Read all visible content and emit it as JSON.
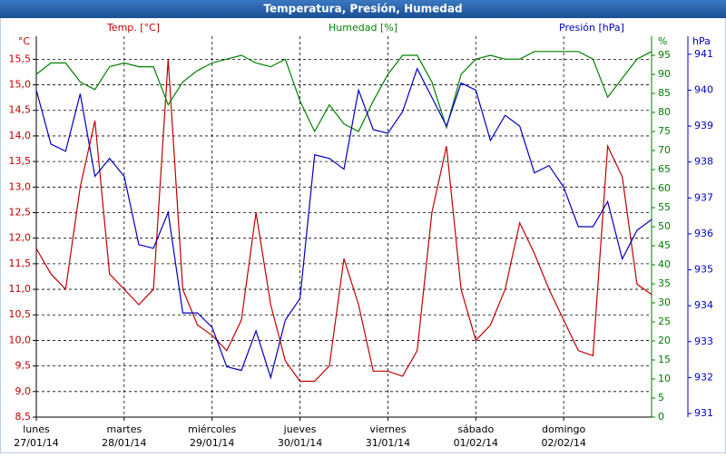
{
  "chart_data": {
    "type": "line",
    "title": "Temperatura, Presión, Humedad",
    "ylabel": "Temp. [°C]",
    "y2label": "Humedad [%]",
    "y3label": "Presión [hPa]",
    "yunit": "°C",
    "y2unit": "%",
    "y3unit": "hPa",
    "x": [
      0,
      4,
      8,
      12,
      16,
      20,
      24,
      28,
      32,
      36,
      40,
      44,
      48,
      52,
      56,
      60,
      64,
      68,
      72,
      76,
      80,
      84,
      88,
      92,
      96,
      100,
      104,
      108,
      112,
      116,
      120,
      124,
      128,
      132,
      136,
      140,
      144,
      148,
      152,
      156,
      160,
      164,
      168
    ],
    "xlim": [
      0,
      168
    ],
    "xticks": [
      {
        "value": 0,
        "label": "lunes",
        "date": "27/01/14"
      },
      {
        "value": 24,
        "label": "martes",
        "date": "28/01/14"
      },
      {
        "value": 48,
        "label": "miércoles",
        "date": "29/01/14"
      },
      {
        "value": 72,
        "label": "jueves",
        "date": "30/01/14"
      },
      {
        "value": 96,
        "label": "viernes",
        "date": "31/01/14"
      },
      {
        "value": 120,
        "label": "sábado",
        "date": "01/02/14"
      },
      {
        "value": 144,
        "label": "domingo",
        "date": "02/02/14"
      }
    ],
    "ylim": [
      8.5,
      15.95
    ],
    "yticks": [
      {
        "value": 8.5,
        "label": "8,5"
      },
      {
        "value": 9,
        "label": "9,0"
      },
      {
        "value": 9.5,
        "label": "9,5"
      },
      {
        "value": 10,
        "label": "10,0"
      },
      {
        "value": 10.5,
        "label": "10,5"
      },
      {
        "value": 11,
        "label": "11,0"
      },
      {
        "value": 11.5,
        "label": "11,5"
      },
      {
        "value": 12,
        "label": "12,0"
      },
      {
        "value": 12.5,
        "label": "12,5"
      },
      {
        "value": 13,
        "label": "13,0"
      },
      {
        "value": 13.5,
        "label": "13,5"
      },
      {
        "value": 14,
        "label": "14,0"
      },
      {
        "value": 14.5,
        "label": "14,5"
      },
      {
        "value": 15,
        "label": "15,0"
      },
      {
        "value": 15.5,
        "label": "15,5"
      }
    ],
    "y2lim": [
      0,
      100
    ],
    "y2ticks": [
      0,
      5,
      10,
      15,
      20,
      25,
      30,
      35,
      40,
      45,
      50,
      55,
      60,
      65,
      70,
      75,
      80,
      85,
      90,
      95
    ],
    "y3lim": [
      930.9,
      941.5
    ],
    "y3ticks": [
      931,
      932,
      933,
      934,
      935,
      936,
      937,
      938,
      939,
      940,
      941
    ],
    "grid": true,
    "series": [
      {
        "name": "Temperatura",
        "color": "#c00000",
        "axis": "y",
        "values": [
          11.8,
          11.3,
          11.0,
          13.0,
          14.3,
          11.3,
          11.0,
          10.7,
          11.0,
          15.5,
          11.0,
          10.3,
          10.1,
          9.8,
          10.4,
          12.5,
          10.7,
          9.6,
          9.2,
          9.2,
          9.5,
          11.6,
          10.7,
          9.4,
          9.4,
          9.3,
          9.8,
          12.5,
          13.8,
          11.0,
          10.0,
          10.3,
          11.0,
          12.3,
          11.7,
          11.0,
          10.4,
          9.8,
          9.7,
          13.8,
          13.2,
          11.1,
          10.9
        ]
      },
      {
        "name": "Humedad",
        "color": "#008000",
        "axis": "y2",
        "values": [
          90,
          93,
          93,
          88,
          86,
          92,
          93,
          92,
          92,
          82,
          88,
          91,
          93,
          94,
          95,
          93,
          92,
          94,
          83,
          75,
          82,
          77,
          75,
          83,
          90,
          95,
          95,
          88,
          76,
          90,
          94,
          95,
          94,
          94,
          96,
          96,
          96,
          96,
          94,
          84,
          89,
          94,
          96
        ]
      },
      {
        "name": "Presión",
        "color": "#0000c0",
        "axis": "y3",
        "values": [
          940.0,
          938.5,
          938.3,
          939.9,
          937.6,
          938.1,
          937.6,
          935.7,
          935.6,
          936.6,
          933.8,
          933.8,
          933.4,
          932.3,
          932.2,
          933.3,
          932.0,
          933.6,
          934.2,
          938.2,
          938.1,
          937.8,
          940.0,
          938.9,
          938.8,
          939.4,
          940.6,
          939.8,
          939.0,
          940.2,
          940.0,
          938.6,
          939.3,
          939.0,
          937.7,
          937.9,
          937.3,
          936.2,
          936.2,
          936.9,
          935.3,
          936.1,
          936.4
        ]
      }
    ]
  }
}
